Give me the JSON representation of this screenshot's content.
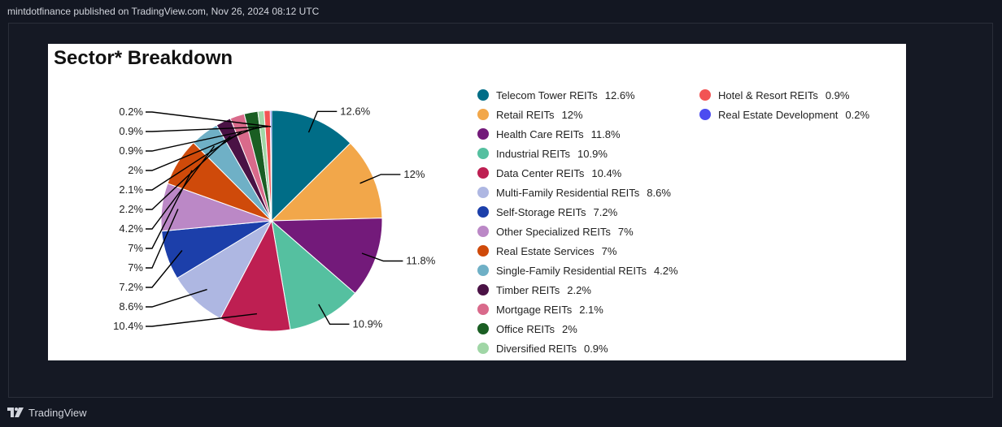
{
  "header": {
    "publisher_text": "mintdotfinance published on TradingView.com, Nov 26, 2024 08:12 UTC"
  },
  "footer": {
    "brand_label": "TradingView",
    "logo_icon": "tradingview-logo-icon"
  },
  "chart_data": {
    "type": "pie",
    "title": "Sector* Breakdown",
    "unit": "%",
    "slices": [
      {
        "name": "Telecom Tower REITs",
        "value": 12.6,
        "label": "12.6%",
        "color": "#006d87"
      },
      {
        "name": "Retail REITs",
        "value": 12,
        "label": "12%",
        "color": "#f2a74a"
      },
      {
        "name": "Health Care REITs",
        "value": 11.8,
        "label": "11.8%",
        "color": "#731a7a"
      },
      {
        "name": "Industrial REITs",
        "value": 10.9,
        "label": "10.9%",
        "color": "#55c0a0"
      },
      {
        "name": "Data Center REITs",
        "value": 10.4,
        "label": "10.4%",
        "color": "#be1f52"
      },
      {
        "name": "Multi-Family Residential REITs",
        "value": 8.6,
        "label": "8.6%",
        "color": "#aeb7e2"
      },
      {
        "name": "Self-Storage REITs",
        "value": 7.2,
        "label": "7.2%",
        "color": "#1c3faa"
      },
      {
        "name": "Other Specialized REITs",
        "value": 7,
        "label": "7%",
        "color": "#bb88c6"
      },
      {
        "name": "Real Estate Services",
        "value": 7,
        "label": "7%",
        "color": "#cf4a0a"
      },
      {
        "name": "Single-Family Residential REITs",
        "value": 4.2,
        "label": "4.2%",
        "color": "#6fb0c6"
      },
      {
        "name": "Timber REITs",
        "value": 2.2,
        "label": "2.2%",
        "color": "#4a1245"
      },
      {
        "name": "Mortgage REITs",
        "value": 2.1,
        "label": "2.1%",
        "color": "#d96a8b"
      },
      {
        "name": "Office REITs",
        "value": 2,
        "label": "2%",
        "color": "#1a5e23"
      },
      {
        "name": "Diversified REITs",
        "value": 0.9,
        "label": "0.9%",
        "color": "#a0d6a6"
      },
      {
        "name": "Hotel & Resort REITs",
        "value": 0.9,
        "label": "0.9%",
        "color": "#f25454"
      },
      {
        "name": "Real Estate Development",
        "value": 0.2,
        "label": "0.2%",
        "color": "#4c4cf0"
      }
    ],
    "legend_placement": "right",
    "legend_columns": [
      14,
      2
    ]
  }
}
